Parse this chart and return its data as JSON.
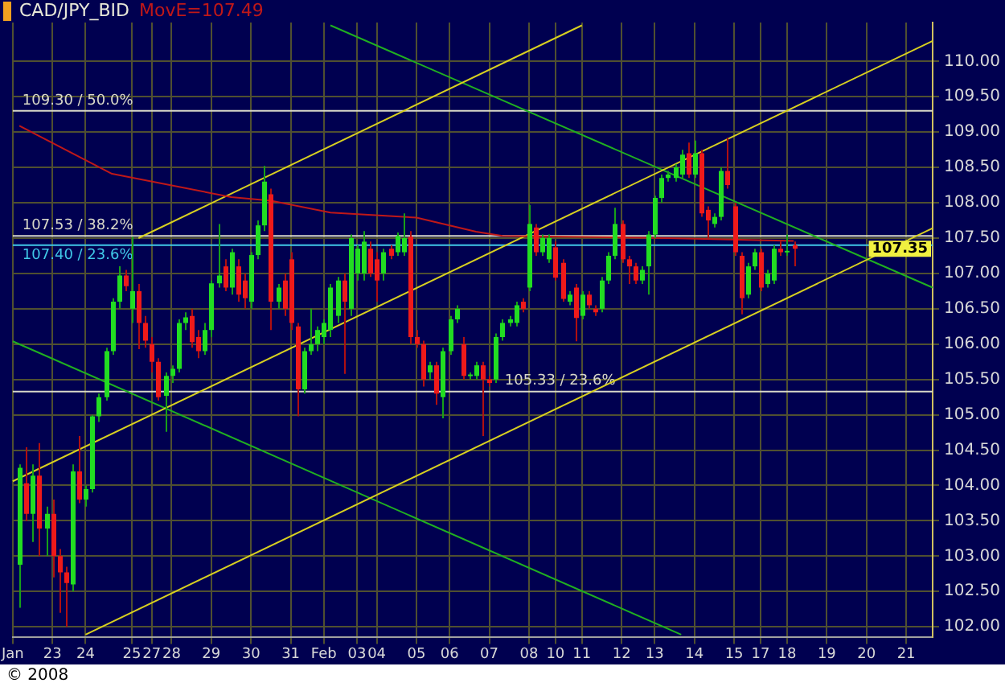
{
  "chart_data": {
    "type": "candlestick",
    "title": "CAD/JPY_BID",
    "categories": [
      "Jan",
      null,
      null,
      null,
      null,
      null,
      "23",
      null,
      null,
      null,
      null,
      "24",
      null,
      null,
      null,
      null,
      null,
      null,
      "25",
      null,
      null,
      "27",
      null,
      null,
      "28",
      null,
      null,
      null,
      null,
      null,
      "29",
      null,
      null,
      null,
      null,
      null,
      "30",
      null,
      null,
      null,
      null,
      null,
      "31",
      null,
      null,
      null,
      null,
      "Feb",
      null,
      null,
      null,
      null,
      "03",
      null,
      null,
      "04",
      null,
      null,
      null,
      null,
      null,
      "05",
      null,
      null,
      null,
      null,
      "06",
      null,
      null,
      null,
      null,
      null,
      "07",
      null,
      null,
      null,
      null,
      null,
      "08",
      null,
      null,
      null,
      "10",
      null,
      null,
      null,
      "11",
      null,
      null,
      null,
      null,
      null,
      "12",
      null,
      null,
      null,
      null,
      "13",
      null,
      null,
      null,
      null,
      null,
      "14",
      null,
      null,
      null,
      null,
      null,
      "15",
      null,
      null,
      null,
      "17",
      null,
      null,
      null,
      "18",
      null,
      null,
      null,
      null,
      null,
      "19",
      null,
      null,
      null,
      null,
      null,
      "20",
      null,
      null,
      null,
      null,
      null,
      "21",
      null,
      null,
      null,
      null
    ],
    "ohlc": [
      null,
      [
        102.88,
        104.3,
        102.27,
        104.25
      ],
      [
        104.03,
        104.54,
        103.5,
        103.6
      ],
      [
        103.6,
        104.3,
        103.2,
        104.14
      ],
      [
        104.14,
        104.6,
        103.0,
        103.39
      ],
      [
        103.39,
        103.7,
        103.0,
        103.6
      ],
      [
        103.6,
        103.8,
        102.7,
        103.0
      ],
      [
        103.0,
        103.1,
        102.2,
        102.77
      ],
      [
        102.77,
        102.85,
        102.0,
        102.62
      ],
      [
        102.6,
        104.3,
        102.5,
        104.2
      ],
      [
        104.2,
        104.7,
        103.75,
        103.8
      ],
      [
        103.8,
        104.0,
        103.7,
        103.95
      ],
      [
        103.95,
        105.0,
        103.9,
        104.98
      ],
      [
        104.98,
        105.3,
        104.9,
        105.25
      ],
      [
        105.25,
        105.95,
        105.2,
        105.9
      ],
      [
        105.9,
        106.65,
        105.85,
        106.6
      ],
      [
        106.6,
        107.1,
        106.5,
        106.97
      ],
      [
        106.97,
        107.05,
        106.75,
        106.82
      ],
      [
        106.5,
        107.52,
        106.3,
        106.75
      ],
      [
        106.75,
        106.85,
        105.93,
        106.3
      ],
      [
        106.3,
        106.4,
        105.95,
        106.05
      ],
      [
        106.0,
        106.1,
        105.6,
        105.75
      ],
      [
        105.75,
        105.8,
        105.2,
        105.25
      ],
      [
        105.27,
        105.6,
        104.76,
        105.55
      ],
      [
        105.55,
        105.7,
        105.45,
        105.65
      ],
      [
        105.65,
        106.35,
        105.6,
        106.3
      ],
      [
        106.3,
        106.45,
        106.2,
        106.38
      ],
      [
        106.4,
        106.5,
        105.95,
        106.03
      ],
      [
        106.1,
        106.2,
        105.8,
        105.9
      ],
      [
        105.9,
        106.3,
        105.85,
        106.2
      ],
      [
        106.2,
        106.9,
        106.1,
        106.86
      ],
      [
        106.86,
        107.7,
        106.8,
        106.97
      ],
      [
        107.1,
        107.2,
        106.75,
        106.8
      ],
      [
        106.8,
        107.35,
        106.7,
        107.3
      ],
      [
        107.1,
        107.2,
        106.6,
        106.7
      ],
      [
        106.9,
        107.0,
        106.5,
        106.65
      ],
      [
        106.6,
        107.3,
        106.5,
        107.26
      ],
      [
        107.26,
        107.75,
        107.2,
        107.68
      ],
      [
        107.68,
        108.52,
        107.6,
        108.3
      ],
      [
        108.12,
        108.2,
        106.2,
        106.6
      ],
      [
        106.6,
        106.85,
        106.5,
        106.8
      ],
      [
        106.9,
        107.0,
        106.4,
        106.5
      ],
      [
        107.2,
        107.3,
        106.2,
        106.3
      ],
      [
        106.25,
        106.3,
        104.98,
        105.36
      ],
      [
        105.36,
        105.95,
        105.3,
        105.9
      ],
      [
        105.9,
        106.5,
        105.85,
        106.0
      ],
      [
        106.0,
        106.25,
        105.9,
        106.2
      ],
      [
        106.1,
        106.35,
        106.0,
        106.3
      ],
      [
        106.2,
        106.85,
        106.1,
        106.8
      ],
      [
        106.4,
        106.95,
        106.3,
        106.9
      ],
      [
        106.9,
        107.0,
        105.58,
        106.6
      ],
      [
        106.5,
        107.55,
        106.4,
        107.5
      ],
      [
        107.0,
        107.4,
        106.9,
        107.35
      ],
      [
        107.0,
        107.6,
        106.9,
        107.45
      ],
      [
        107.35,
        107.45,
        106.95,
        107.0
      ],
      [
        107.2,
        107.3,
        106.6,
        106.9
      ],
      [
        107.0,
        107.35,
        106.9,
        107.3
      ],
      [
        107.35,
        107.4,
        107.2,
        107.25
      ],
      [
        107.3,
        107.58,
        107.25,
        107.53
      ],
      [
        107.3,
        107.85,
        107.25,
        107.5
      ],
      [
        107.52,
        107.6,
        106.0,
        106.1
      ],
      [
        106.1,
        106.2,
        105.95,
        106.0
      ],
      [
        106.0,
        106.05,
        105.4,
        105.5
      ],
      [
        105.6,
        105.75,
        105.5,
        105.7
      ],
      [
        105.7,
        105.75,
        105.14,
        105.3
      ],
      [
        105.25,
        105.95,
        104.95,
        105.9
      ],
      [
        105.9,
        106.4,
        105.85,
        106.35
      ],
      [
        106.35,
        106.55,
        106.3,
        106.5
      ],
      [
        106.0,
        106.1,
        105.5,
        105.55
      ],
      [
        105.55,
        105.6,
        105.5,
        105.57
      ],
      [
        105.55,
        105.75,
        105.5,
        105.7
      ],
      [
        105.7,
        105.75,
        104.7,
        105.5
      ],
      [
        105.5,
        105.55,
        105.4,
        105.45
      ],
      [
        105.5,
        106.15,
        105.45,
        106.1
      ],
      [
        106.1,
        106.35,
        106.05,
        106.3
      ],
      [
        106.3,
        106.4,
        106.25,
        106.35
      ],
      [
        106.3,
        106.6,
        106.25,
        106.55
      ],
      [
        106.6,
        106.65,
        106.45,
        106.5
      ],
      [
        106.8,
        107.97,
        106.75,
        107.7
      ],
      [
        107.65,
        107.7,
        107.25,
        107.3
      ],
      [
        107.3,
        107.55,
        107.25,
        107.5
      ],
      [
        107.2,
        107.55,
        107.15,
        107.5
      ],
      [
        107.37,
        107.45,
        106.9,
        106.94
      ],
      [
        107.15,
        107.2,
        106.6,
        106.64
      ],
      [
        106.6,
        106.75,
        106.55,
        106.7
      ],
      [
        106.8,
        106.85,
        106.04,
        106.37
      ],
      [
        106.4,
        106.75,
        106.35,
        106.7
      ],
      [
        106.7,
        106.75,
        106.5,
        106.55
      ],
      [
        106.5,
        106.55,
        106.4,
        106.45
      ],
      [
        106.5,
        106.95,
        106.45,
        106.9
      ],
      [
        106.9,
        107.3,
        106.85,
        107.25
      ],
      [
        107.25,
        107.93,
        107.2,
        107.7
      ],
      [
        107.7,
        107.75,
        107.15,
        107.2
      ],
      [
        107.2,
        107.25,
        106.85,
        107.1
      ],
      [
        107.1,
        107.15,
        106.85,
        106.9
      ],
      [
        106.9,
        107.1,
        106.85,
        107.05
      ],
      [
        107.1,
        107.6,
        106.7,
        107.55
      ],
      [
        107.55,
        108.1,
        107.5,
        108.07
      ],
      [
        108.07,
        108.4,
        108.0,
        108.35
      ],
      [
        108.35,
        108.45,
        108.3,
        108.4
      ],
      [
        108.35,
        108.55,
        108.3,
        108.5
      ],
      [
        108.4,
        108.75,
        108.35,
        108.68
      ],
      [
        108.7,
        108.85,
        108.35,
        108.4
      ],
      [
        108.4,
        108.88,
        108.35,
        108.7
      ],
      [
        108.7,
        108.75,
        107.8,
        107.85
      ],
      [
        107.9,
        107.95,
        107.5,
        107.75
      ],
      [
        107.7,
        107.85,
        107.65,
        107.8
      ],
      [
        107.8,
        108.5,
        107.75,
        108.45
      ],
      [
        108.45,
        108.92,
        108.2,
        108.25
      ],
      [
        107.95,
        108.0,
        107.25,
        107.3
      ],
      [
        107.25,
        107.3,
        106.42,
        106.65
      ],
      [
        106.7,
        107.15,
        106.65,
        107.1
      ],
      [
        107.1,
        107.35,
        107.05,
        107.3
      ],
      [
        107.3,
        107.35,
        106.75,
        106.8
      ],
      [
        106.85,
        107.05,
        106.8,
        107.0
      ],
      [
        106.9,
        107.4,
        106.85,
        107.35
      ],
      [
        107.35,
        107.45,
        107.25,
        107.3
      ],
      [
        107.3,
        107.55,
        107.25,
        107.32
      ],
      [
        107.4,
        107.45,
        107.1,
        107.35
      ],
      null,
      null,
      null,
      null,
      null,
      null,
      null,
      null,
      null,
      null,
      null,
      null,
      null,
      null,
      null,
      null,
      null,
      null,
      null,
      null,
      null
    ],
    "series": [
      {
        "type": "line",
        "name": "MovE=107.49",
        "color": "#c01818",
        "values": [
          null,
          109.09,
          null,
          null,
          null,
          null,
          null,
          null,
          null,
          null,
          null,
          null,
          null,
          null,
          null,
          108.41,
          null,
          null,
          null,
          null,
          null,
          null,
          null,
          null,
          null,
          null,
          null,
          null,
          null,
          null,
          null,
          null,
          null,
          108.08,
          null,
          null,
          null,
          null,
          null,
          108.03,
          null,
          null,
          null,
          null,
          null,
          null,
          null,
          null,
          107.86,
          null,
          null,
          null,
          null,
          null,
          null,
          null,
          null,
          null,
          null,
          null,
          null,
          107.79,
          null,
          null,
          null,
          null,
          null,
          null,
          null,
          null,
          107.59,
          null,
          null,
          null,
          107.53,
          null,
          null,
          null,
          null,
          null,
          null,
          null,
          null,
          null,
          null,
          null,
          null,
          null,
          null,
          null,
          null,
          null,
          null,
          null,
          null,
          null,
          null,
          null,
          null,
          107.5,
          null,
          null,
          null,
          null,
          null,
          null,
          null,
          null,
          null,
          null,
          null,
          null,
          null,
          null,
          null,
          null,
          null,
          null,
          107.46,
          null,
          null,
          null,
          null,
          null,
          null,
          null,
          null,
          null,
          null,
          null,
          null,
          null,
          null,
          null,
          null,
          null,
          null,
          null,
          null,
          null
        ]
      },
      {
        "type": "line",
        "color": "#d8d020",
        "values": [
          null,
          null,
          null,
          null,
          null,
          null,
          null,
          null,
          null,
          null,
          null,
          null,
          null,
          null,
          null,
          null,
          null,
          null,
          null,
          107.5,
          null,
          null,
          null,
          null,
          null,
          null,
          null,
          null,
          null,
          null,
          null,
          null,
          null,
          null,
          null,
          null,
          null,
          null,
          null,
          null,
          null,
          null,
          null,
          null,
          null,
          null,
          null,
          null,
          null,
          null,
          null,
          null,
          null,
          null,
          null,
          null,
          null,
          null,
          null,
          null,
          null,
          null,
          null,
          null,
          null,
          null,
          null,
          null,
          null,
          null,
          null,
          null,
          null,
          null,
          null,
          null,
          null,
          null,
          null,
          null,
          null,
          null,
          null,
          null,
          null,
          null,
          110.51,
          null,
          null,
          null,
          null,
          null,
          null,
          null,
          null,
          null,
          null,
          null,
          null,
          null,
          null,
          null,
          null,
          null,
          null,
          null,
          null,
          null,
          null,
          null,
          null,
          null,
          null,
          null,
          null,
          null,
          null,
          null,
          null,
          null,
          null,
          null,
          null,
          null,
          null,
          null,
          null,
          null,
          null,
          null,
          null,
          null,
          null,
          null,
          null,
          null,
          null,
          null,
          null,
          null
        ]
      },
      {
        "type": "line",
        "color": "#d8d020",
        "values": [
          104.06,
          null,
          null,
          null,
          null,
          null,
          null,
          null,
          null,
          null,
          null,
          null,
          null,
          null,
          null,
          null,
          null,
          null,
          null,
          null,
          null,
          null,
          null,
          null,
          null,
          null,
          null,
          null,
          null,
          null,
          null,
          null,
          null,
          null,
          null,
          null,
          null,
          null,
          null,
          null,
          null,
          null,
          null,
          null,
          null,
          null,
          null,
          null,
          null,
          null,
          null,
          null,
          null,
          null,
          null,
          null,
          null,
          null,
          null,
          null,
          null,
          null,
          null,
          null,
          null,
          null,
          null,
          null,
          null,
          null,
          null,
          null,
          null,
          null,
          null,
          null,
          null,
          null,
          null,
          null,
          null,
          null,
          null,
          null,
          null,
          null,
          null,
          null,
          null,
          null,
          null,
          null,
          null,
          null,
          null,
          null,
          null,
          null,
          null,
          null,
          null,
          null,
          null,
          null,
          null,
          null,
          null,
          null,
          null,
          null,
          null,
          null,
          null,
          null,
          null,
          null,
          null,
          null,
          null,
          null,
          null,
          null,
          null,
          null,
          null,
          null,
          null,
          null,
          null,
          null,
          null,
          null,
          null,
          null,
          null,
          null,
          null,
          null,
          null,
          110.29
        ]
      },
      {
        "type": "line",
        "color": "#d8d020",
        "values": [
          null,
          null,
          null,
          null,
          null,
          null,
          null,
          null,
          null,
          null,
          null,
          101.89,
          null,
          null,
          null,
          null,
          null,
          null,
          null,
          null,
          null,
          null,
          null,
          null,
          null,
          null,
          null,
          null,
          null,
          null,
          null,
          null,
          null,
          null,
          null,
          null,
          null,
          null,
          null,
          null,
          null,
          null,
          null,
          null,
          null,
          null,
          null,
          null,
          null,
          null,
          null,
          null,
          null,
          null,
          null,
          null,
          null,
          null,
          null,
          null,
          null,
          null,
          null,
          null,
          null,
          null,
          null,
          null,
          null,
          null,
          null,
          null,
          null,
          null,
          null,
          null,
          null,
          null,
          null,
          null,
          null,
          null,
          null,
          null,
          null,
          null,
          null,
          null,
          null,
          null,
          null,
          null,
          null,
          null,
          null,
          null,
          null,
          null,
          null,
          null,
          null,
          null,
          null,
          null,
          null,
          null,
          null,
          null,
          null,
          null,
          null,
          null,
          null,
          null,
          null,
          null,
          null,
          null,
          null,
          null,
          null,
          null,
          null,
          null,
          null,
          null,
          null,
          null,
          null,
          null,
          null,
          null,
          null,
          null,
          null,
          null,
          null,
          null,
          null,
          107.64
        ]
      },
      {
        "type": "line",
        "color": "#20b020",
        "values": [
          null,
          null,
          null,
          null,
          null,
          null,
          null,
          null,
          null,
          null,
          null,
          null,
          null,
          null,
          null,
          null,
          null,
          null,
          null,
          null,
          null,
          null,
          null,
          null,
          null,
          null,
          null,
          null,
          null,
          null,
          null,
          null,
          null,
          null,
          null,
          null,
          null,
          null,
          null,
          null,
          null,
          null,
          null,
          null,
          null,
          null,
          null,
          null,
          110.51,
          null,
          null,
          null,
          null,
          null,
          null,
          null,
          null,
          null,
          null,
          null,
          null,
          null,
          null,
          null,
          null,
          null,
          null,
          null,
          null,
          null,
          null,
          null,
          null,
          null,
          null,
          null,
          null,
          null,
          null,
          null,
          null,
          null,
          null,
          null,
          null,
          null,
          null,
          null,
          null,
          null,
          null,
          null,
          null,
          null,
          null,
          null,
          null,
          null,
          null,
          null,
          null,
          null,
          null,
          null,
          null,
          null,
          null,
          null,
          null,
          null,
          null,
          null,
          null,
          null,
          null,
          null,
          null,
          null,
          null,
          null,
          null,
          null,
          null,
          null,
          null,
          null,
          null,
          null,
          null,
          null,
          null,
          null,
          null,
          null,
          null,
          null,
          null,
          null,
          null,
          106.8
        ]
      },
      {
        "type": "line",
        "color": "#20b020",
        "values": [
          106.04,
          null,
          null,
          null,
          null,
          null,
          null,
          null,
          null,
          null,
          null,
          null,
          null,
          null,
          null,
          null,
          null,
          null,
          null,
          null,
          null,
          null,
          null,
          null,
          null,
          null,
          null,
          null,
          null,
          null,
          null,
          null,
          null,
          null,
          null,
          null,
          null,
          null,
          null,
          null,
          null,
          null,
          null,
          null,
          null,
          null,
          null,
          null,
          null,
          null,
          null,
          null,
          null,
          null,
          null,
          null,
          null,
          null,
          null,
          null,
          null,
          null,
          null,
          null,
          null,
          null,
          null,
          null,
          null,
          null,
          null,
          null,
          null,
          null,
          null,
          null,
          null,
          null,
          null,
          null,
          null,
          null,
          null,
          null,
          null,
          null,
          null,
          null,
          null,
          null,
          null,
          null,
          null,
          null,
          null,
          null,
          null,
          null,
          null,
          null,
          null,
          101.89,
          null,
          null,
          null,
          null,
          null,
          null,
          null,
          null,
          null,
          null,
          null,
          null,
          null,
          null,
          null,
          null,
          null,
          null,
          null,
          null,
          null,
          null,
          null,
          null,
          null,
          null,
          null,
          null,
          null,
          null,
          null,
          null,
          null,
          null,
          null,
          null,
          null,
          null
        ]
      }
    ],
    "ref_lines": [
      {
        "axis": "y",
        "value": 109.3,
        "label": "109.30 / 50.0%",
        "color": "#d8d8c8"
      },
      {
        "axis": "y",
        "value": 107.53,
        "label": "107.53 / 38.2%",
        "color": "#d8d8c8"
      },
      {
        "axis": "y",
        "value": 107.4,
        "label": "107.40 / 23.6%",
        "color": "#40c8e8"
      },
      {
        "axis": "y",
        "value": 105.33,
        "label": "105.33 / 23.6%",
        "color": "#d8d8c8"
      }
    ],
    "annotations": [
      "107.35",
      "© 2008"
    ],
    "ylim": [
      101.85,
      110.55
    ],
    "yticks": [
      {
        "value": 102,
        "label": "102.00"
      },
      {
        "value": 102.5,
        "label": "102.50"
      },
      {
        "value": 103,
        "label": "103.00"
      },
      {
        "value": 103.5,
        "label": "103.50"
      },
      {
        "value": 104,
        "label": "104.00"
      },
      {
        "value": 104.5,
        "label": "104.50"
      },
      {
        "value": 105,
        "label": "105.00"
      },
      {
        "value": 105.5,
        "label": "105.50"
      },
      {
        "value": 106,
        "label": "106.00"
      },
      {
        "value": 106.5,
        "label": "106.50"
      },
      {
        "value": 107,
        "label": "107.00"
      },
      {
        "value": 107.5,
        "label": "107.50"
      },
      {
        "value": 108,
        "label": "108.00"
      },
      {
        "value": 108.5,
        "label": "108.50"
      },
      {
        "value": 109,
        "label": "109.00"
      },
      {
        "value": 109.5,
        "label": "109.50"
      },
      {
        "value": 110,
        "label": "110.00"
      }
    ],
    "grid": true
  }
}
